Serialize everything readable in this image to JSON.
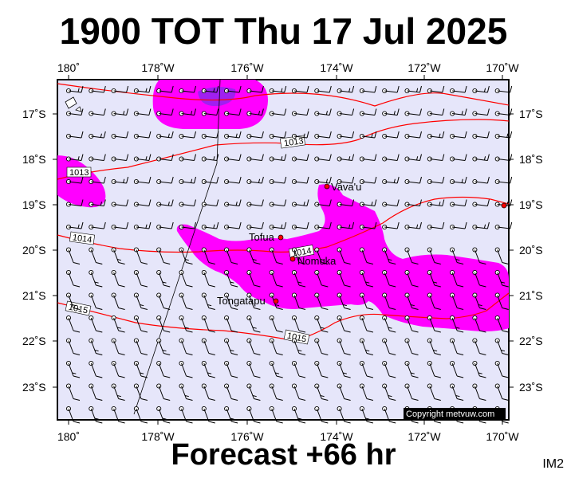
{
  "title": "1900 TOT Thu 17 Jul 2025",
  "subtitle": "Forecast +66 hr",
  "corner_label": "IM2",
  "copyright": "Copyright metvuw.com",
  "lon_ticks": [
    "180˚",
    "178˚W",
    "176˚W",
    "174˚W",
    "172˚W",
    "170˚W"
  ],
  "lat_ticks": [
    "17˚S",
    "18˚S",
    "19˚S",
    "20˚S",
    "21˚S",
    "22˚S",
    "23˚S"
  ],
  "places": [
    {
      "name": "Vava'u"
    },
    {
      "name": "Tofua"
    },
    {
      "name": "Nomuka"
    },
    {
      "name": "Tongatapu"
    }
  ],
  "isobars": [
    "1013",
    "1013",
    "1014",
    "1014",
    "1015",
    "1015"
  ],
  "colors": {
    "background": "#e6e6fa",
    "precip": "#ff00ff",
    "precip_heavy": "#a020f0",
    "isobar": "#ff0000",
    "place_marker": "#ff0000"
  }
}
